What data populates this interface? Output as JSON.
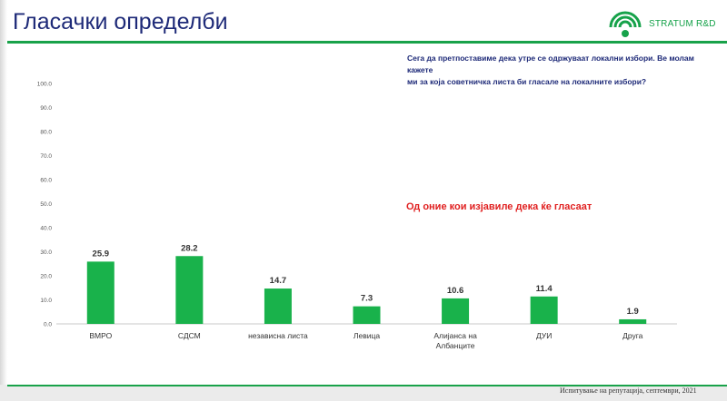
{
  "header": {
    "title": "Гласачки определби",
    "logo_text": "STRATUM R&D"
  },
  "question": {
    "line1": "Сега да претпоставиме дека утре се одржуваат локални избори. Ве молам кажете",
    "line2": "ми за која советничка листа би гласале на локалните избори?"
  },
  "annotation": "Од оние кои изјавиле дека ќе гласаат",
  "footer": "Испитување на репутација, септември, 2021",
  "colors": {
    "bar": "#19b24b",
    "title": "#1e2a78",
    "accent": "#19a24a",
    "annotation": "#e02020"
  },
  "chart_data": {
    "type": "bar",
    "categories": [
      "ВМРО",
      "СДСМ",
      "независна листа",
      "Левица",
      [
        "Алијанса на",
        "Албанците"
      ],
      "ДУИ",
      "Друга"
    ],
    "values": [
      25.9,
      28.2,
      14.7,
      7.3,
      10.6,
      11.4,
      1.9
    ],
    "value_labels": [
      "25.9",
      "28.2",
      "14.7",
      "7.3",
      "10.6",
      "11.4",
      "1.9"
    ],
    "y_ticks": [
      "0.0",
      "10.0",
      "20.0",
      "30.0",
      "40.0",
      "50.0",
      "60.0",
      "70.0",
      "80.0",
      "90.0",
      "100.0"
    ],
    "ylim": [
      0,
      100
    ],
    "grid": false,
    "legend": "none"
  }
}
